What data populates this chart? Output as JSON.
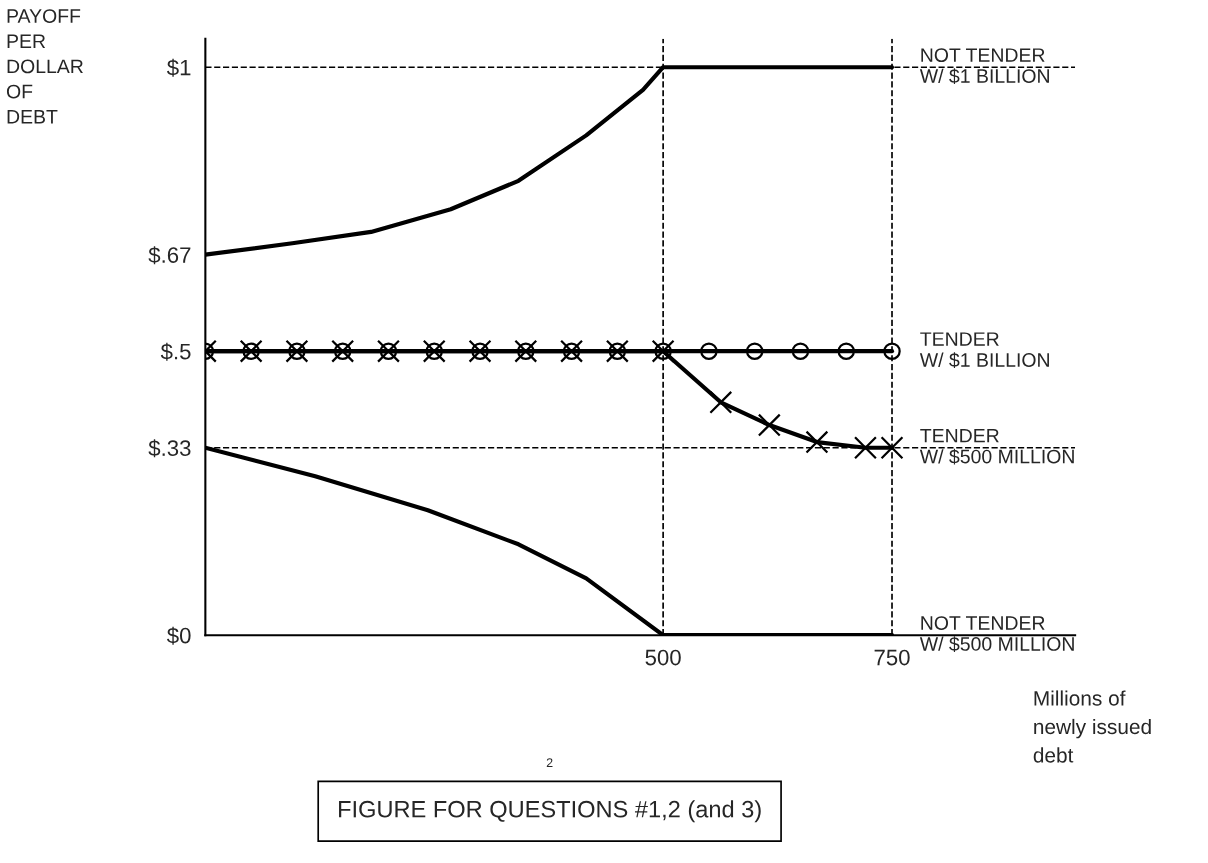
{
  "chart_data": {
    "type": "line",
    "ylabel": "PAYOFF\nPER\nDOLLAR\nOF\nDEBT",
    "xlabel": "Millions of\nnewly issued\ndebt",
    "annotations": [
      "2",
      "FIGURE FOR QUESTIONS #1,2 (and 3)"
    ],
    "xlim": [
      0,
      950
    ],
    "xticks": [
      500,
      750
    ],
    "ylim": [
      0,
      1.05
    ],
    "yticks": [
      {
        "value": 0,
        "label": "$0"
      },
      {
        "value": 0.33,
        "label": "$.33"
      },
      {
        "value": 0.5,
        "label": "$.5"
      },
      {
        "value": 0.67,
        "label": "$.67"
      },
      {
        "value": 1,
        "label": "$1"
      }
    ],
    "grid": false,
    "legend": false,
    "line_style": "solid",
    "ref_lines": [
      {
        "axis": "y",
        "value": 1,
        "line_style": "dashed",
        "color": "#000000"
      },
      {
        "axis": "y",
        "value": 0.33,
        "line_style": "dashed",
        "color": "#000000"
      },
      {
        "axis": "x",
        "value": 500,
        "line_style": "dashed",
        "color": "#000000"
      },
      {
        "axis": "x",
        "value": 750,
        "line_style": "dashed",
        "color": "#000000"
      }
    ],
    "series": [
      {
        "name": "NOT TENDER\nW/ $1 BILLION",
        "color": "#000000",
        "marker": "none",
        "x": [
          0,
          95,
          181,
          268,
          342,
          416,
          478,
          500,
          750
        ],
        "values": [
          0.67,
          0.69,
          0.71,
          0.75,
          0.8,
          0.88,
          0.96,
          1,
          1
        ]
      },
      {
        "name": "TENDER\nW/ $1 BILLION",
        "color": "#000000",
        "marker": "circle",
        "x": [
          0,
          50,
          100,
          150,
          200,
          250,
          300,
          350,
          400,
          450,
          500,
          550,
          600,
          650,
          700,
          750
        ],
        "values": [
          0.5,
          0.5,
          0.5,
          0.5,
          0.5,
          0.5,
          0.5,
          0.5,
          0.5,
          0.5,
          0.5,
          0.5,
          0.5,
          0.5,
          0.5,
          0.5
        ]
      },
      {
        "name": "TENDER\nW/ $500 MILLION",
        "color": "#000000",
        "marker": "cross",
        "x": [
          0,
          50,
          100,
          150,
          200,
          250,
          300,
          350,
          400,
          450,
          500,
          563,
          616,
          668,
          721,
          750
        ],
        "values": [
          0.5,
          0.5,
          0.5,
          0.5,
          0.5,
          0.5,
          0.5,
          0.5,
          0.5,
          0.5,
          0.5,
          0.41,
          0.37,
          0.34,
          0.33,
          0.33
        ]
      },
      {
        "name": "NOT TENDER\nW/ $500 MILLION",
        "color": "#000000",
        "marker": "none",
        "x": [
          0,
          120,
          243,
          342,
          416,
          500,
          750
        ],
        "values": [
          0.33,
          0.28,
          0.22,
          0.16,
          0.1,
          0,
          0
        ]
      }
    ]
  }
}
